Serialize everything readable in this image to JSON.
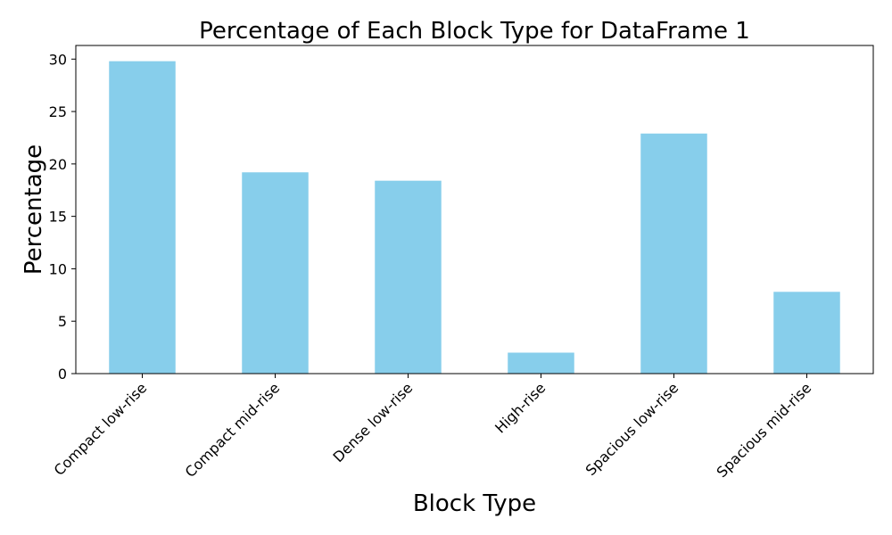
{
  "chart_data": {
    "type": "bar",
    "title": "Percentage of Each Block Type for DataFrame 1",
    "xlabel": "Block Type",
    "ylabel": "Percentage",
    "categories": [
      "Compact low-rise",
      "Compact mid-rise",
      "Dense low-rise",
      "High-rise",
      "Spacious low-rise",
      "Spacious mid-rise"
    ],
    "values": [
      29.8,
      19.2,
      18.4,
      2.0,
      22.9,
      7.8
    ],
    "ylim": [
      0,
      31.3
    ],
    "yticks": [
      0,
      5,
      10,
      15,
      20,
      25,
      30
    ],
    "bar_color": "#87ceeb",
    "grid": false,
    "legend": "none",
    "x_tick_rotation": 45
  }
}
